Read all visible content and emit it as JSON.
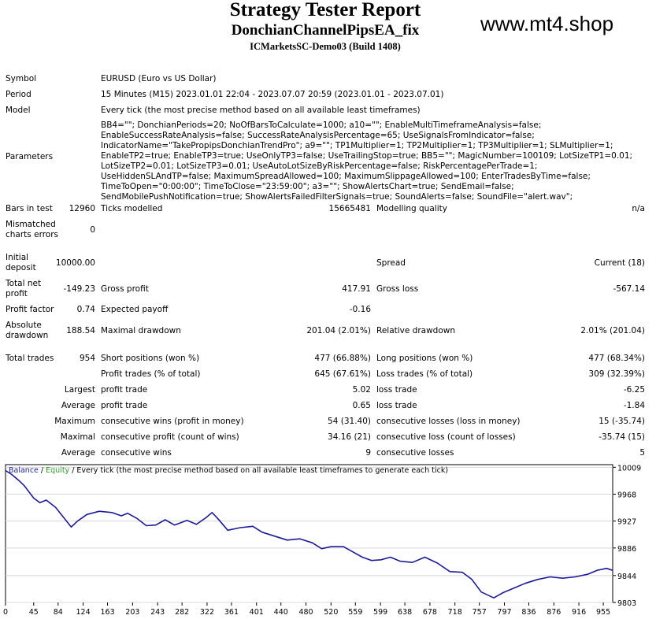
{
  "header": {
    "title": "Strategy Tester Report",
    "subtitle": "DonchianChannelPipsEA_fix",
    "build": "ICMarketsSC-Demo03 (Build 1408)",
    "site": "www.mt4.shop"
  },
  "info": {
    "symbol_label": "Symbol",
    "symbol_value": "EURUSD (Euro vs US Dollar)",
    "period_label": "Period",
    "period_value": "15 Minutes (M15) 2023.01.01 22:04 - 2023.07.07 20:59 (2023.01.01 - 2023.07.01)",
    "model_label": "Model",
    "model_value": "Every tick (the most precise method based on all available least timeframes)",
    "parameters_label": "Parameters",
    "parameters_value": "BB4=\"\"; DonchianPeriods=20; NoOfBarsToCalculate=1000; a10=\"\"; EnableMultiTimeframeAnalysis=false; EnableSuccessRateAnalysis=false; SuccessRateAnalysisPercentage=65; UseSignalsFromIndicator=false; IndicatorName=\"TakePropipsDonchianTrendPro\"; a9=\"\"; TP1Multiplier=1; TP2Multiplier=1; TP3Multiplier=1; SLMultiplier=1; EnableTP2=true; EnableTP3=true; UseOnlyTP3=false; UseTrailingStop=true; BB5=\"\"; MagicNumber=100109; LotSizeTP1=0.01; LotSizeTP2=0.01; LotSizeTP3=0.01; UseAutoLotSizeByRiskPercentage=false; RiskPercentagePerTrade=1; UseHiddenSLAndTP=false; MaximumSpreadAllowed=100; MaximumSlippageAllowed=100; EnterTradesByTime=false; TimeToOpen=\"0:00:00\"; TimeToClose=\"23:59:00\"; a3=\"\"; ShowAlertsChart=true; SendEmail=false; SendMobilePushNotification=true; ShowAlertsFailedFilterSignals=true; SoundAlerts=false; SoundFile=\"alert.wav\";"
  },
  "stats": {
    "bars_label": "Bars in test",
    "bars_value": "12960",
    "ticks_label": "Ticks modelled",
    "ticks_value": "15665481",
    "quality_label": "Modelling quality",
    "quality_value": "n/a",
    "mismatched_label_1": "Mismatched",
    "mismatched_label_2": "charts errors",
    "mismatched_value": "0",
    "deposit_label_1": "Initial",
    "deposit_label_2": "deposit",
    "deposit_value": "10000.00",
    "spread_label": "Spread",
    "spread_value": "Current (18)",
    "netprofit_label_1": "Total net",
    "netprofit_label_2": "profit",
    "netprofit_value": "-149.23",
    "grossprofit_label": "Gross profit",
    "grossprofit_value": "417.91",
    "grossloss_label": "Gross loss",
    "grossloss_value": "-567.14",
    "profitfactor_label": "Profit factor",
    "profitfactor_value": "0.74",
    "payoff_label": "Expected payoff",
    "payoff_value": "-0.16",
    "absdd_label_1": "Absolute",
    "absdd_label_2": "drawdown",
    "absdd_value": "188.54",
    "maxdd_label": "Maximal drawdown",
    "maxdd_value": "201.04 (2.01%)",
    "reldd_label": "Relative drawdown",
    "reldd_value": "2.01% (201.04)",
    "trades_label": "Total trades",
    "trades_value": "954",
    "short_label": "Short positions (won %)",
    "short_value": "477 (66.88%)",
    "long_label": "Long positions (won %)",
    "long_value": "477 (68.34%)",
    "profittrades_label": "Profit trades (% of total)",
    "profittrades_value": "645 (67.61%)",
    "losstrades_label": "Loss trades (% of total)",
    "losstrades_value": "309 (32.39%)",
    "largest_label": "Largest",
    "largest_profit_label": "profit trade",
    "largest_profit_value": "5.02",
    "largest_loss_label": "loss trade",
    "largest_loss_value": "-6.25",
    "average_label": "Average",
    "average_profit_label": "profit trade",
    "average_profit_value": "0.65",
    "average_loss_label": "loss trade",
    "average_loss_value": "-1.84",
    "maximum_label": "Maximum",
    "max_wins_label": "consecutive wins (profit in money)",
    "max_wins_value": "54 (31.40)",
    "max_losses_label": "consecutive losses (loss in money)",
    "max_losses_value": "15 (-35.74)",
    "maximal_label": "Maximal",
    "maximal_profit_label": "consecutive profit (count of wins)",
    "maximal_profit_value": "34.16 (21)",
    "maximal_loss_label": "consecutive loss (count of losses)",
    "maximal_loss_value": "-35.74 (15)",
    "avg_consec_label": "Average",
    "avg_wins_label": "consecutive wins",
    "avg_wins_value": "9",
    "avg_losses_label": "consecutive losses",
    "avg_losses_value": "5"
  },
  "chart_legend": {
    "balance": "Balance",
    "sep1": " / ",
    "equity": "Equity",
    "rest": " / Every tick (the most precise method based on all available least timeframes to generate each tick)"
  },
  "chart_data": {
    "type": "line",
    "x_ticks": [
      "0",
      "45",
      "84",
      "124",
      "163",
      "203",
      "243",
      "282",
      "322",
      "361",
      "401",
      "440",
      "480",
      "520",
      "559",
      "599",
      "638",
      "678",
      "718",
      "757",
      "797",
      "836",
      "876",
      "916",
      "955"
    ],
    "y_ticks": [
      "10009",
      "9968",
      "9927",
      "9886",
      "9844",
      "9803"
    ],
    "xlim": [
      0,
      970
    ],
    "ylim": [
      9803,
      10013
    ],
    "series": [
      {
        "name": "Balance",
        "color": "#1b1b99",
        "points": [
          [
            0,
            10004
          ],
          [
            10,
            9998
          ],
          [
            20,
            9990
          ],
          [
            30,
            9981
          ],
          [
            45,
            9962
          ],
          [
            55,
            9955
          ],
          [
            65,
            9959
          ],
          [
            80,
            9948
          ],
          [
            95,
            9930
          ],
          [
            105,
            9918
          ],
          [
            115,
            9927
          ],
          [
            130,
            9937
          ],
          [
            150,
            9942
          ],
          [
            170,
            9940
          ],
          [
            185,
            9935
          ],
          [
            195,
            9939
          ],
          [
            210,
            9931
          ],
          [
            225,
            9920
          ],
          [
            240,
            9921
          ],
          [
            255,
            9929
          ],
          [
            270,
            9921
          ],
          [
            290,
            9928
          ],
          [
            305,
            9922
          ],
          [
            320,
            9932
          ],
          [
            330,
            9940
          ],
          [
            340,
            9930
          ],
          [
            355,
            9913
          ],
          [
            375,
            9917
          ],
          [
            395,
            9919
          ],
          [
            410,
            9910
          ],
          [
            430,
            9904
          ],
          [
            450,
            9898
          ],
          [
            470,
            9900
          ],
          [
            490,
            9894
          ],
          [
            505,
            9885
          ],
          [
            520,
            9888
          ],
          [
            540,
            9888
          ],
          [
            555,
            9880
          ],
          [
            570,
            9872
          ],
          [
            585,
            9867
          ],
          [
            600,
            9868
          ],
          [
            615,
            9872
          ],
          [
            630,
            9866
          ],
          [
            650,
            9864
          ],
          [
            670,
            9872
          ],
          [
            690,
            9863
          ],
          [
            710,
            9850
          ],
          [
            730,
            9849
          ],
          [
            745,
            9838
          ],
          [
            760,
            9819
          ],
          [
            780,
            9810
          ],
          [
            795,
            9818
          ],
          [
            810,
            9824
          ],
          [
            830,
            9832
          ],
          [
            850,
            9838
          ],
          [
            870,
            9842
          ],
          [
            890,
            9840
          ],
          [
            910,
            9842
          ],
          [
            930,
            9846
          ],
          [
            945,
            9852
          ],
          [
            960,
            9855
          ],
          [
            970,
            9852
          ]
        ]
      },
      {
        "name": "Equity",
        "color": "#2a9c2a",
        "points": []
      }
    ]
  }
}
